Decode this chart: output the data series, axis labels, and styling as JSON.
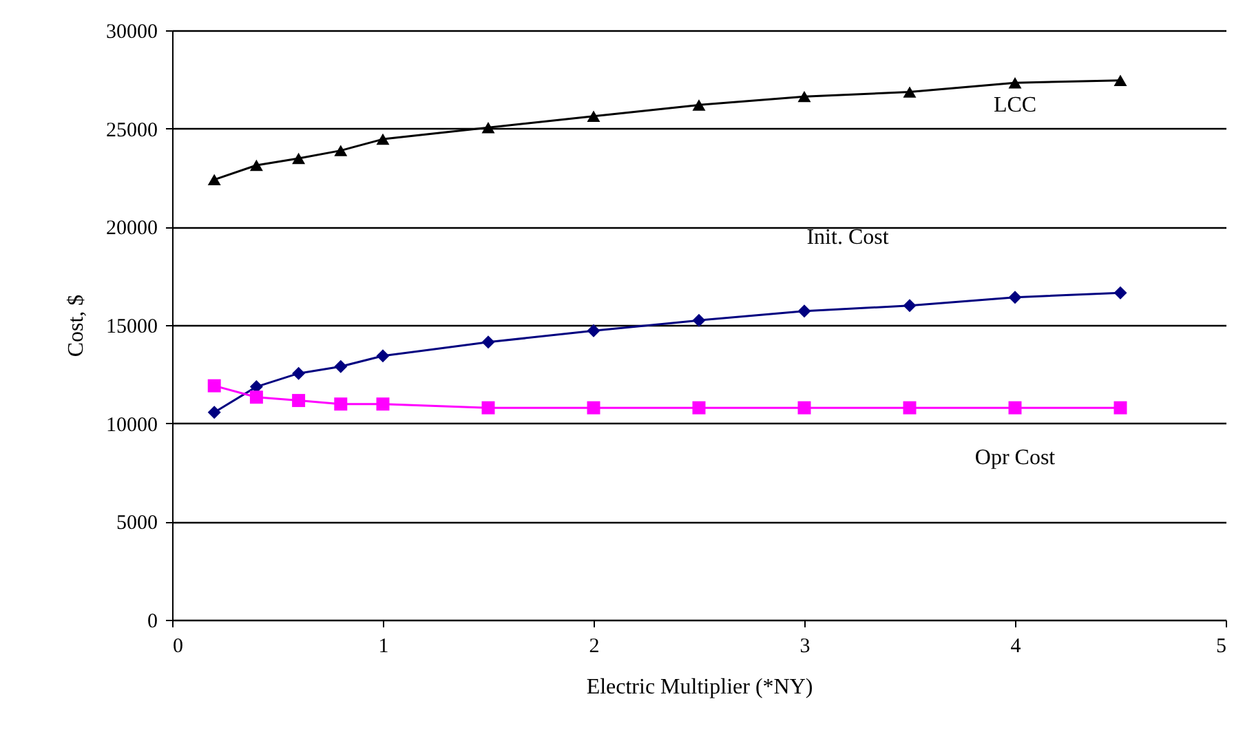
{
  "chart_data": {
    "type": "line",
    "xlabel": "Electric Multiplier (*NY)",
    "ylabel": "Cost, $",
    "x": [
      0.2,
      0.4,
      0.6,
      0.8,
      1,
      1.5,
      2,
      2.5,
      3,
      3.5,
      4,
      4.5
    ],
    "series": [
      {
        "name": "LCC",
        "color": "#000000",
        "marker": "triangle",
        "values": [
          22400,
          23130,
          23480,
          23880,
          24460,
          25050,
          25630,
          26200,
          26630,
          26860,
          27330,
          27450
        ]
      },
      {
        "name": "Init. Cost",
        "color": "#000080",
        "marker": "diamond",
        "values": [
          10560,
          11860,
          12540,
          12890,
          13430,
          14130,
          14710,
          15240,
          15710,
          15990,
          16410,
          16640
        ]
      },
      {
        "name": "Opr Cost",
        "color": "#ff00ff",
        "marker": "square",
        "values": [
          11910,
          11330,
          11160,
          10980,
          10980,
          10790,
          10790,
          10790,
          10790,
          10790,
          10790,
          10790
        ]
      }
    ],
    "xlim": [
      0,
      5
    ],
    "xticks": [
      0,
      1,
      2,
      3,
      4,
      5
    ],
    "ylim": [
      0,
      30000
    ],
    "yticks": [
      0,
      5000,
      10000,
      15000,
      20000,
      25000,
      30000
    ],
    "grid": "y",
    "legend": false,
    "line_style": "solid"
  }
}
